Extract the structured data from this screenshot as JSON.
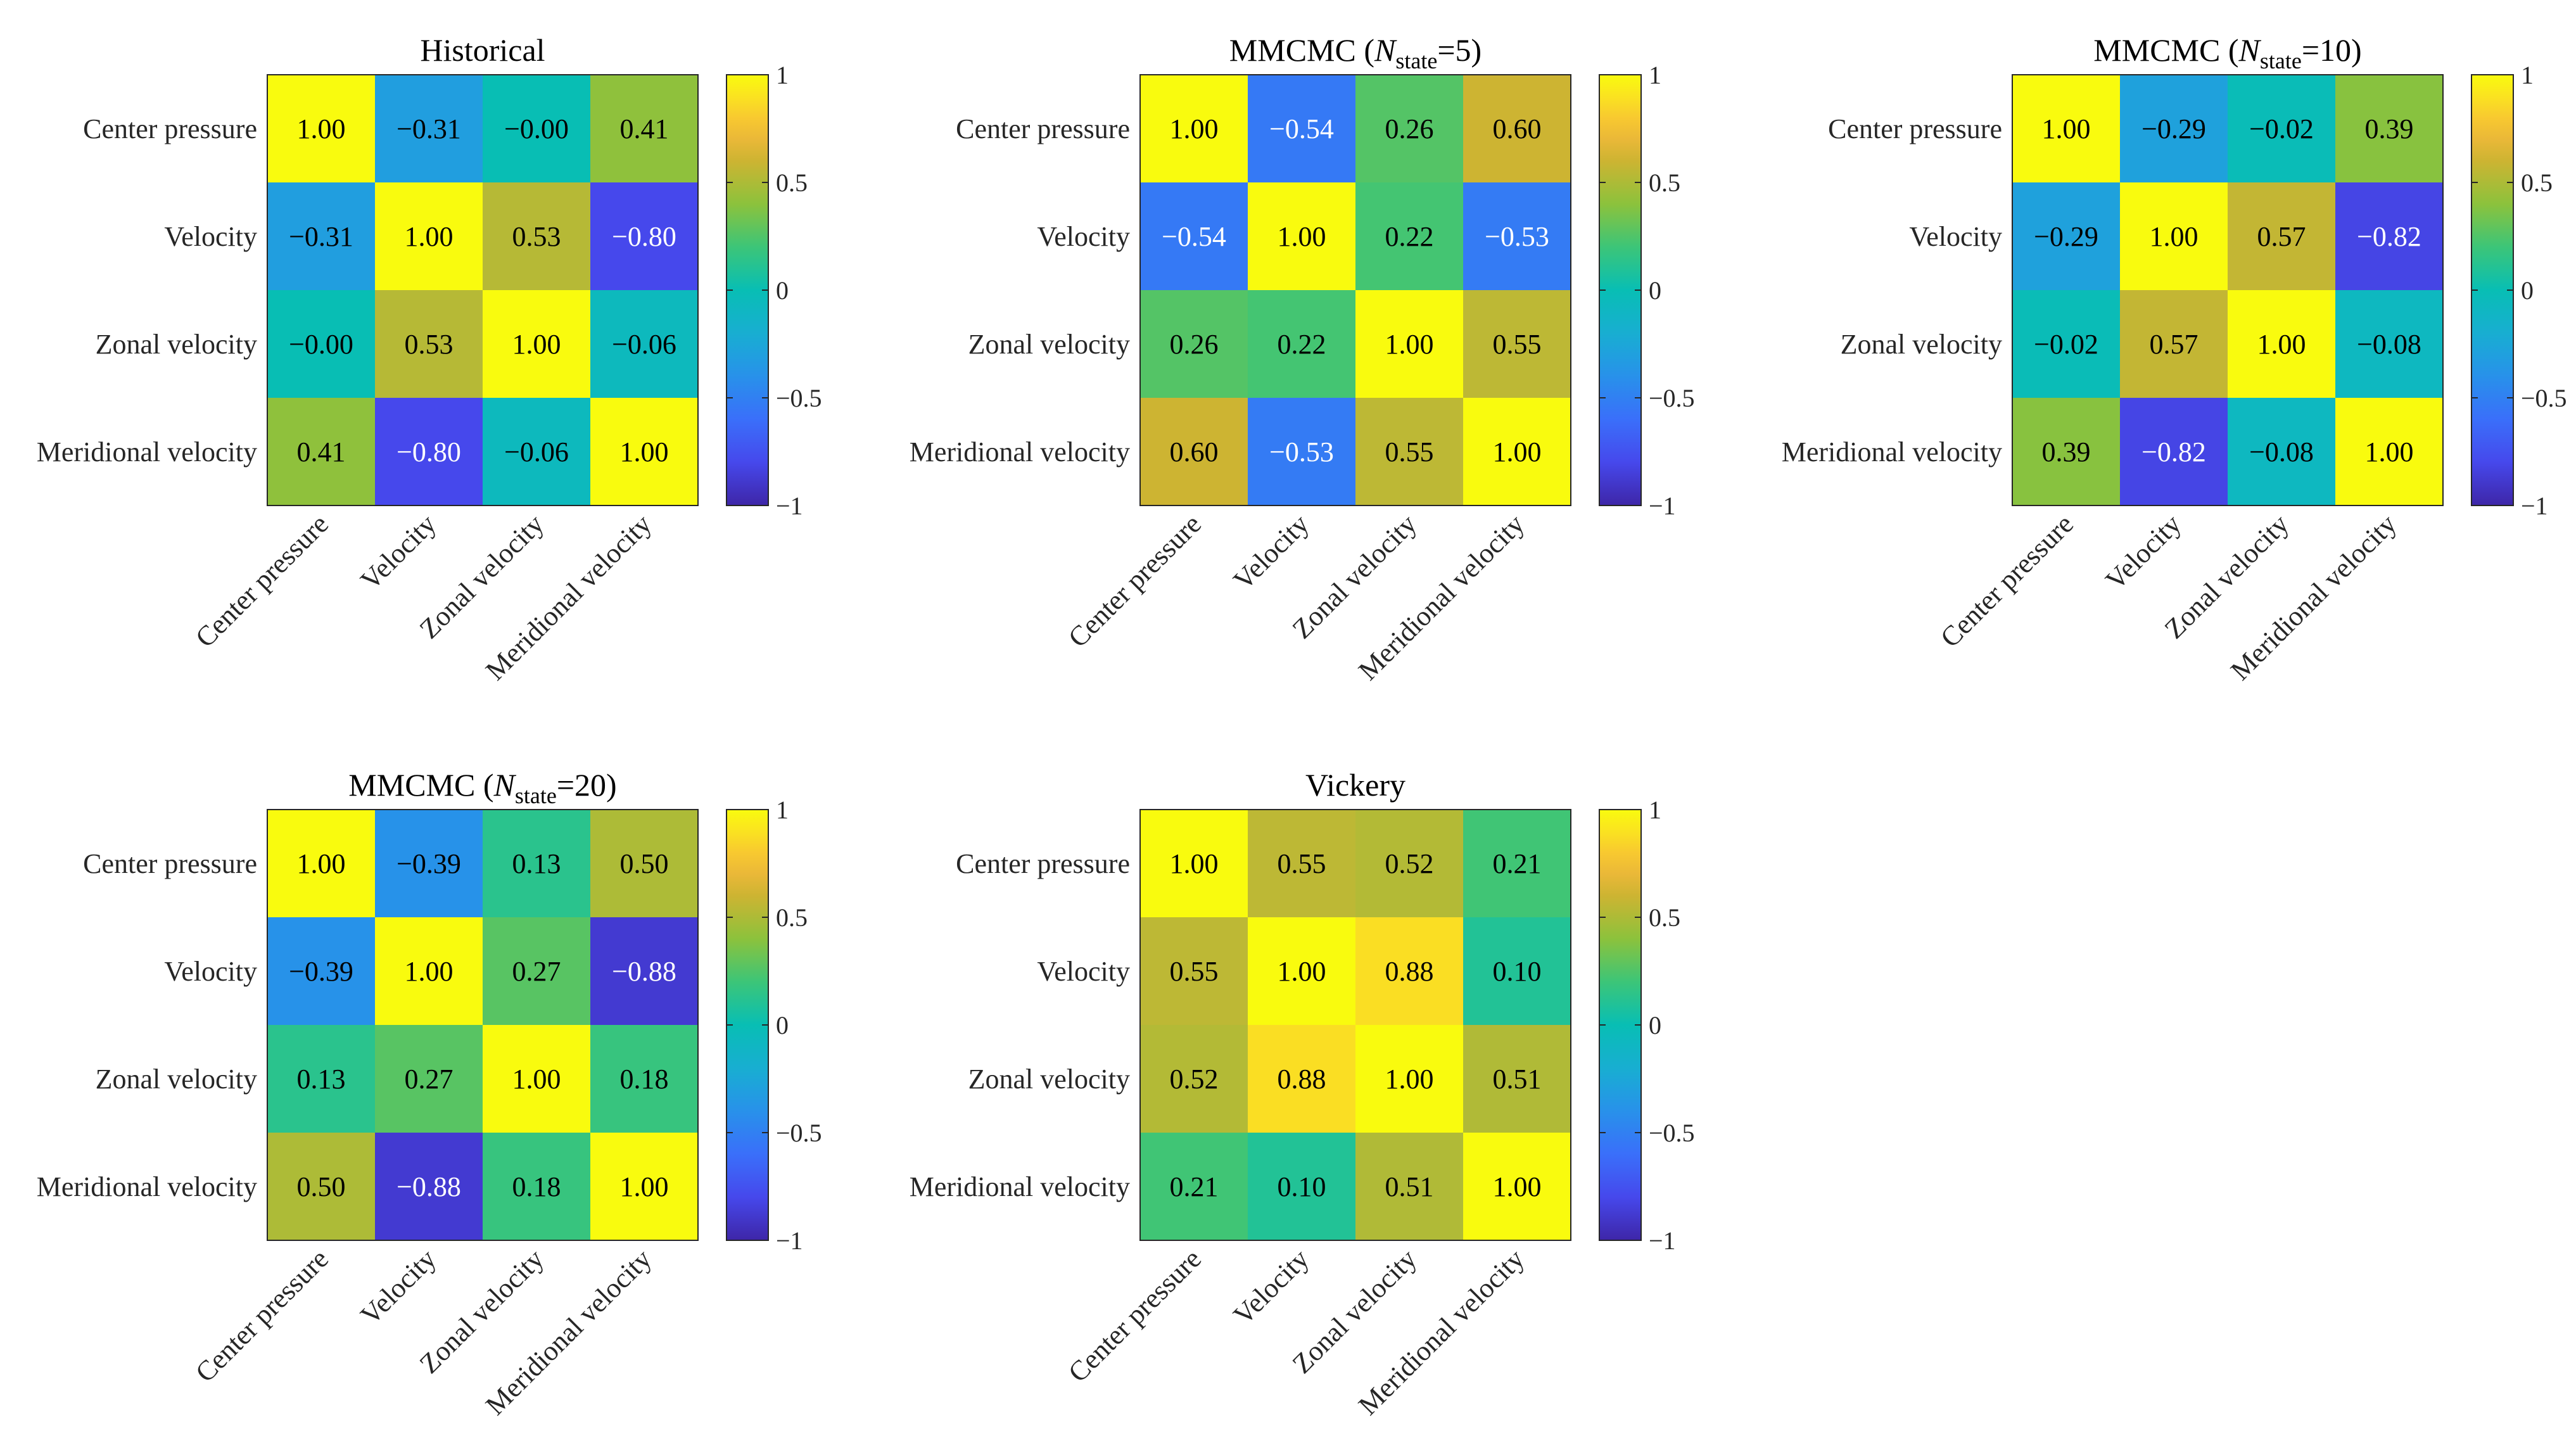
{
  "chart_data": [
    {
      "type": "heatmap",
      "title": "Historical",
      "title_sub": "",
      "title_end": "",
      "row_labels": [
        "Center pressure",
        "Velocity",
        "Zonal velocity",
        "Meridional velocity"
      ],
      "col_labels": [
        "Center pressure",
        "Velocity",
        "Zonal velocity",
        "Meridional velocity"
      ],
      "values": [
        [
          1.0,
          -0.31,
          -0.0,
          0.41
        ],
        [
          -0.31,
          1.0,
          0.53,
          -0.8
        ],
        [
          -0.0,
          0.53,
          1.0,
          -0.06
        ],
        [
          0.41,
          -0.8,
          -0.06,
          1.0
        ]
      ],
      "cell_labels": [
        [
          "1.00",
          "−0.31",
          "−0.00",
          "0.41"
        ],
        [
          "−0.31",
          "1.00",
          "0.53",
          "−0.80"
        ],
        [
          "−0.00",
          "0.53",
          "1.00",
          "−0.06"
        ],
        [
          "0.41",
          "−0.80",
          "−0.06",
          "1.00"
        ]
      ],
      "colorbar_ticks": [
        1,
        0.5,
        0,
        -0.5,
        -1
      ],
      "colorbar_tick_labels": [
        "1",
        "0.5",
        "0",
        "−0.5",
        "−1"
      ],
      "clim": [
        -1,
        1
      ],
      "colormap": "parula"
    },
    {
      "type": "heatmap",
      "title": "MMCMC (N",
      "title_sub": "state",
      "title_end": "=5)",
      "row_labels": [
        "Center pressure",
        "Velocity",
        "Zonal velocity",
        "Meridional velocity"
      ],
      "col_labels": [
        "Center pressure",
        "Velocity",
        "Zonal velocity",
        "Meridional velocity"
      ],
      "values": [
        [
          1.0,
          -0.54,
          0.26,
          0.6
        ],
        [
          -0.54,
          1.0,
          0.22,
          -0.53
        ],
        [
          0.26,
          0.22,
          1.0,
          0.55
        ],
        [
          0.6,
          -0.53,
          0.55,
          1.0
        ]
      ],
      "cell_labels": [
        [
          "1.00",
          "−0.54",
          "0.26",
          "0.60"
        ],
        [
          "−0.54",
          "1.00",
          "0.22",
          "−0.53"
        ],
        [
          "0.26",
          "0.22",
          "1.00",
          "0.55"
        ],
        [
          "0.60",
          "−0.53",
          "0.55",
          "1.00"
        ]
      ],
      "colorbar_ticks": [
        1,
        0.5,
        0,
        -0.5,
        -1
      ],
      "colorbar_tick_labels": [
        "1",
        "0.5",
        "0",
        "−0.5",
        "−1"
      ],
      "clim": [
        -1,
        1
      ],
      "colormap": "parula"
    },
    {
      "type": "heatmap",
      "title": "MMCMC (N",
      "title_sub": "state",
      "title_end": "=10)",
      "row_labels": [
        "Center pressure",
        "Velocity",
        "Zonal velocity",
        "Meridional velocity"
      ],
      "col_labels": [
        "Center pressure",
        "Velocity",
        "Zonal velocity",
        "Meridional velocity"
      ],
      "values": [
        [
          1.0,
          -0.29,
          -0.02,
          0.39
        ],
        [
          -0.29,
          1.0,
          0.57,
          -0.82
        ],
        [
          -0.02,
          0.57,
          1.0,
          -0.08
        ],
        [
          0.39,
          -0.82,
          -0.08,
          1.0
        ]
      ],
      "cell_labels": [
        [
          "1.00",
          "−0.29",
          "−0.02",
          "0.39"
        ],
        [
          "−0.29",
          "1.00",
          "0.57",
          "−0.82"
        ],
        [
          "−0.02",
          "0.57",
          "1.00",
          "−0.08"
        ],
        [
          "0.39",
          "−0.82",
          "−0.08",
          "1.00"
        ]
      ],
      "colorbar_ticks": [
        1,
        0.5,
        0,
        -0.5,
        -1
      ],
      "colorbar_tick_labels": [
        "1",
        "0.5",
        "0",
        "−0.5",
        "−1"
      ],
      "clim": [
        -1,
        1
      ],
      "colormap": "parula"
    },
    {
      "type": "heatmap",
      "title": "MMCMC (N",
      "title_sub": "state",
      "title_end": "=20)",
      "row_labels": [
        "Center pressure",
        "Velocity",
        "Zonal velocity",
        "Meridional velocity"
      ],
      "col_labels": [
        "Center pressure",
        "Velocity",
        "Zonal velocity",
        "Meridional velocity"
      ],
      "values": [
        [
          1.0,
          -0.39,
          0.13,
          0.5
        ],
        [
          -0.39,
          1.0,
          0.27,
          -0.88
        ],
        [
          0.13,
          0.27,
          1.0,
          0.18
        ],
        [
          0.5,
          -0.88,
          0.18,
          1.0
        ]
      ],
      "cell_labels": [
        [
          "1.00",
          "−0.39",
          "0.13",
          "0.50"
        ],
        [
          "−0.39",
          "1.00",
          "0.27",
          "−0.88"
        ],
        [
          "0.13",
          "0.27",
          "1.00",
          "0.18"
        ],
        [
          "0.50",
          "−0.88",
          "0.18",
          "1.00"
        ]
      ],
      "colorbar_ticks": [
        1,
        0.5,
        0,
        -0.5,
        -1
      ],
      "colorbar_tick_labels": [
        "1",
        "0.5",
        "0",
        "−0.5",
        "−1"
      ],
      "clim": [
        -1,
        1
      ],
      "colormap": "parula"
    },
    {
      "type": "heatmap",
      "title": "Vickery",
      "title_sub": "",
      "title_end": "",
      "row_labels": [
        "Center pressure",
        "Velocity",
        "Zonal velocity",
        "Meridional velocity"
      ],
      "col_labels": [
        "Center pressure",
        "Velocity",
        "Zonal velocity",
        "Meridional velocity"
      ],
      "values": [
        [
          1.0,
          0.55,
          0.52,
          0.21
        ],
        [
          0.55,
          1.0,
          0.88,
          0.1
        ],
        [
          0.52,
          0.88,
          1.0,
          0.51
        ],
        [
          0.21,
          0.1,
          0.51,
          1.0
        ]
      ],
      "cell_labels": [
        [
          "1.00",
          "0.55",
          "0.52",
          "0.21"
        ],
        [
          "0.55",
          "1.00",
          "0.88",
          "0.10"
        ],
        [
          "0.52",
          "0.88",
          "1.00",
          "0.51"
        ],
        [
          "0.21",
          "0.10",
          "0.51",
          "1.00"
        ]
      ],
      "colorbar_ticks": [
        1,
        0.5,
        0,
        -0.5,
        -1
      ],
      "colorbar_tick_labels": [
        "1",
        "0.5",
        "0",
        "−0.5",
        "−1"
      ],
      "clim": [
        -1,
        1
      ],
      "colormap": "parula"
    }
  ]
}
